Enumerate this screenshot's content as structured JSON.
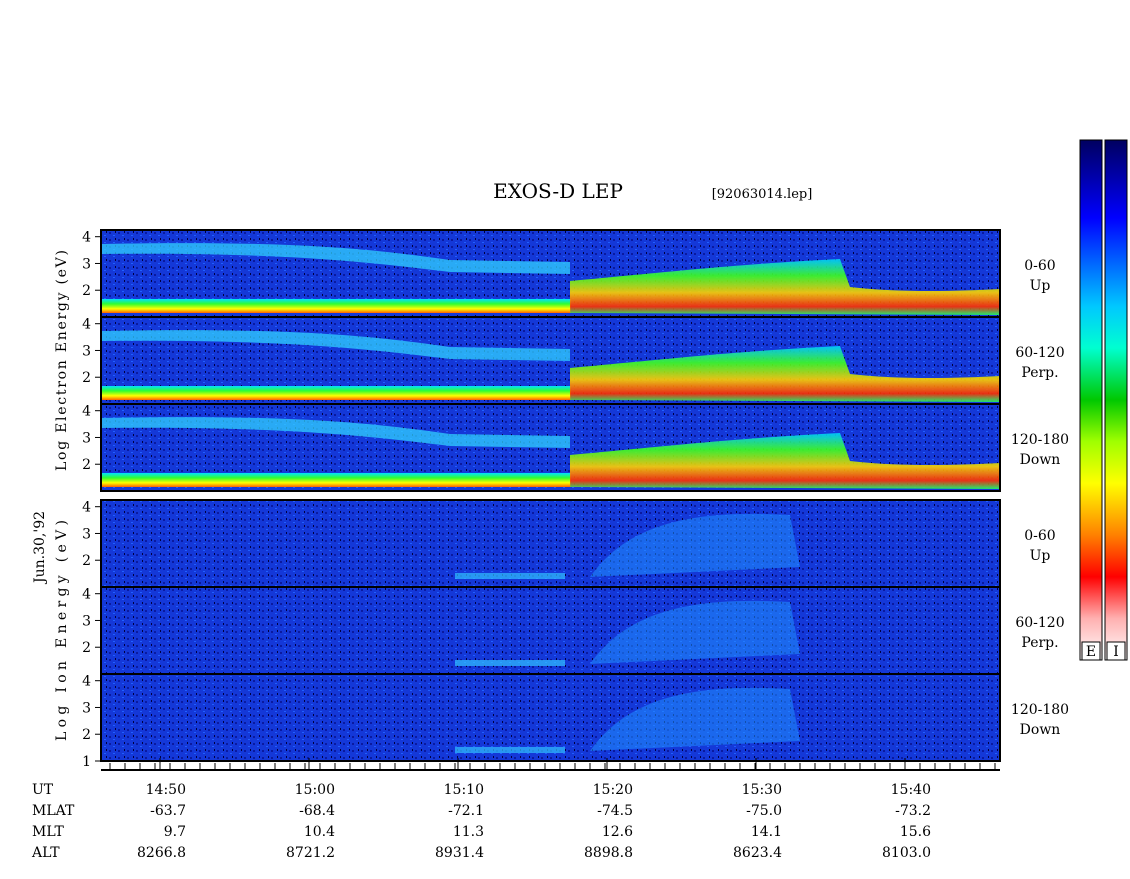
{
  "title": "EXOS-D LEP",
  "file": "[92063014.lep]",
  "date_label": "Jun.30,'92",
  "groups": [
    {
      "axis_label": "Log Electron Energy (eV)",
      "panels": [
        {
          "angle": "0-60",
          "direction": "Up",
          "ylim": [
            1,
            4.25
          ],
          "yticks": [
            2,
            3,
            4
          ]
        },
        {
          "angle": "60-120",
          "direction": "Perp.",
          "ylim": [
            1,
            4.25
          ],
          "yticks": [
            2,
            3,
            4
          ]
        },
        {
          "angle": "120-180",
          "direction": "Down",
          "ylim": [
            1,
            4.25
          ],
          "yticks": [
            2,
            3,
            4
          ]
        }
      ]
    },
    {
      "axis_label": "Log Ion Energy (eV)",
      "panels": [
        {
          "angle": "0-60",
          "direction": "Up",
          "ylim": [
            1,
            4.25
          ],
          "yticks": [
            2,
            3,
            4
          ]
        },
        {
          "angle": "60-120",
          "direction": "Perp.",
          "ylim": [
            1,
            4.25
          ],
          "yticks": [
            2,
            3,
            4
          ]
        },
        {
          "angle": "120-180",
          "direction": "Down",
          "ylim": [
            1,
            4.25
          ],
          "yticks": [
            1,
            2,
            3,
            4
          ]
        }
      ]
    }
  ],
  "rows": [
    {
      "name": "UT",
      "values": [
        "14:50",
        "15:00",
        "15:10",
        "15:20",
        "15:30",
        "15:40"
      ]
    },
    {
      "name": "MLAT",
      "values": [
        "-63.7",
        "-68.4",
        "-72.1",
        "-74.5",
        "-75.0",
        "-73.2"
      ]
    },
    {
      "name": "MLT",
      "values": [
        "9.7",
        "10.4",
        "11.3",
        "12.6",
        "14.1",
        "15.6"
      ]
    },
    {
      "name": "ALT",
      "values": [
        "8266.8",
        "8721.2",
        "8931.4",
        "8898.8",
        "8623.4",
        "8103.0"
      ]
    }
  ],
  "colorbars": [
    "E",
    "I"
  ]
}
